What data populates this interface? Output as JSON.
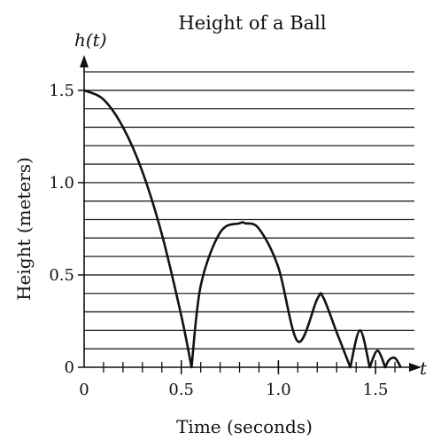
{
  "chart_data": {
    "type": "line",
    "title": "Height of a Ball",
    "xlabel": "Time (seconds)",
    "ylabel": "Height (meters)",
    "x_axis_var": "t",
    "y_axis_var": "h(t)",
    "xlim": [
      0,
      1.7
    ],
    "ylim": [
      0,
      1.6
    ],
    "x_ticks": [
      0,
      0.5,
      1.0,
      1.5
    ],
    "x_tick_labels": [
      "0",
      "0.5",
      "1.0",
      "1.5"
    ],
    "x_minor_step": 0.1,
    "y_ticks": [
      0,
      0.5,
      1.0,
      1.5
    ],
    "y_tick_labels": [
      "0",
      "0.5",
      "1.0",
      "1.5"
    ],
    "y_grid_step": 0.1,
    "grid": true,
    "series": [
      {
        "x": [
          0,
          0.1,
          0.2,
          0.3,
          0.4,
          0.5,
          0.553,
          0.6,
          0.7,
          0.8,
          0.83,
          0.9,
          1.0,
          1.1,
          1.2,
          1.23,
          1.3,
          1.37,
          1.42,
          1.47,
          1.51,
          1.55,
          1.57,
          1.6,
          1.63
        ],
        "y": [
          1.5,
          1.45,
          1.3,
          1.06,
          0.72,
          0.28,
          0,
          0.44,
          0.73,
          0.78,
          0.78,
          0.75,
          0.54,
          0.14,
          0.37,
          0.38,
          0.19,
          0,
          0.2,
          0,
          0.09,
          0,
          0.04,
          0.05,
          0
        ],
        "color": "#111111"
      }
    ]
  }
}
